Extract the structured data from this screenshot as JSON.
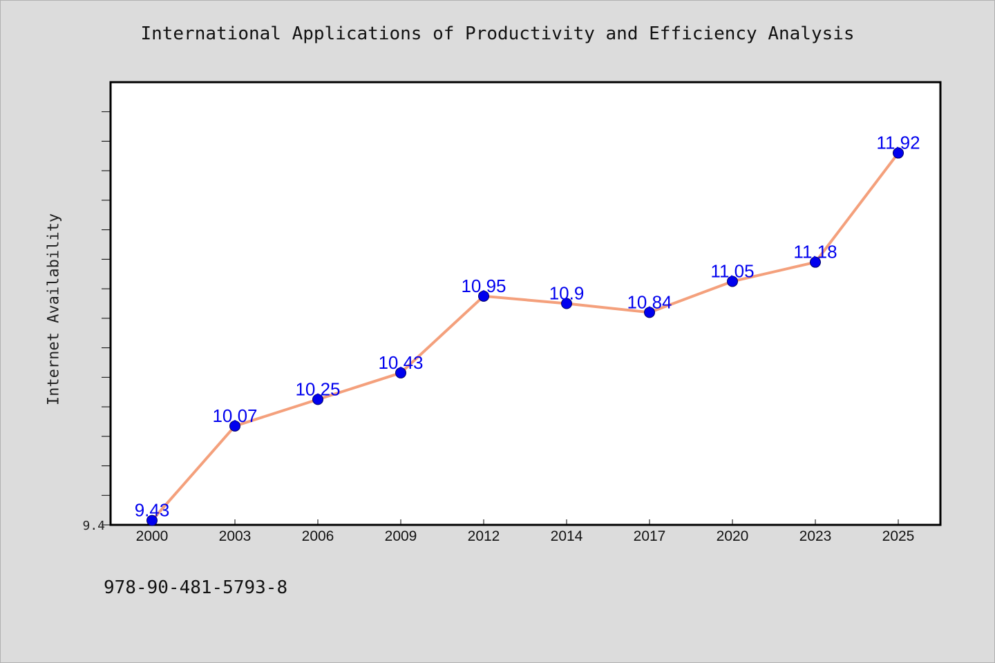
{
  "chart_data": {
    "type": "line",
    "title": "International Applications of Productivity and Efficiency Analysis",
    "ylabel": "Internet Availability",
    "xlabel": "",
    "categories": [
      "2000",
      "2003",
      "2006",
      "2009",
      "2012",
      "2014",
      "2017",
      "2020",
      "2023",
      "2025"
    ],
    "series": [
      {
        "values": [
          9.43,
          10.07,
          10.25,
          10.43,
          10.95,
          10.9,
          10.84,
          11.05,
          11.18,
          11.92
        ],
        "data_labels": [
          "9.43",
          "10.07",
          "10.25",
          "10.43",
          "10.95",
          "10.9",
          "10.84",
          "11.05",
          "11.18",
          "11.92"
        ],
        "line_color": "#f4a07c",
        "marker_color": "#0000ee",
        "label_color": "#0000ee"
      }
    ],
    "ylim": [
      9.4,
      12.4
    ],
    "y_tick_labels": [
      "9.4"
    ],
    "grid": false,
    "legend": "none"
  },
  "footer": {
    "isbn": "978-90-481-5793-8"
  },
  "colors": {
    "background": "#dcdcdc",
    "plot_background": "#ffffff",
    "axis": "#000000"
  }
}
